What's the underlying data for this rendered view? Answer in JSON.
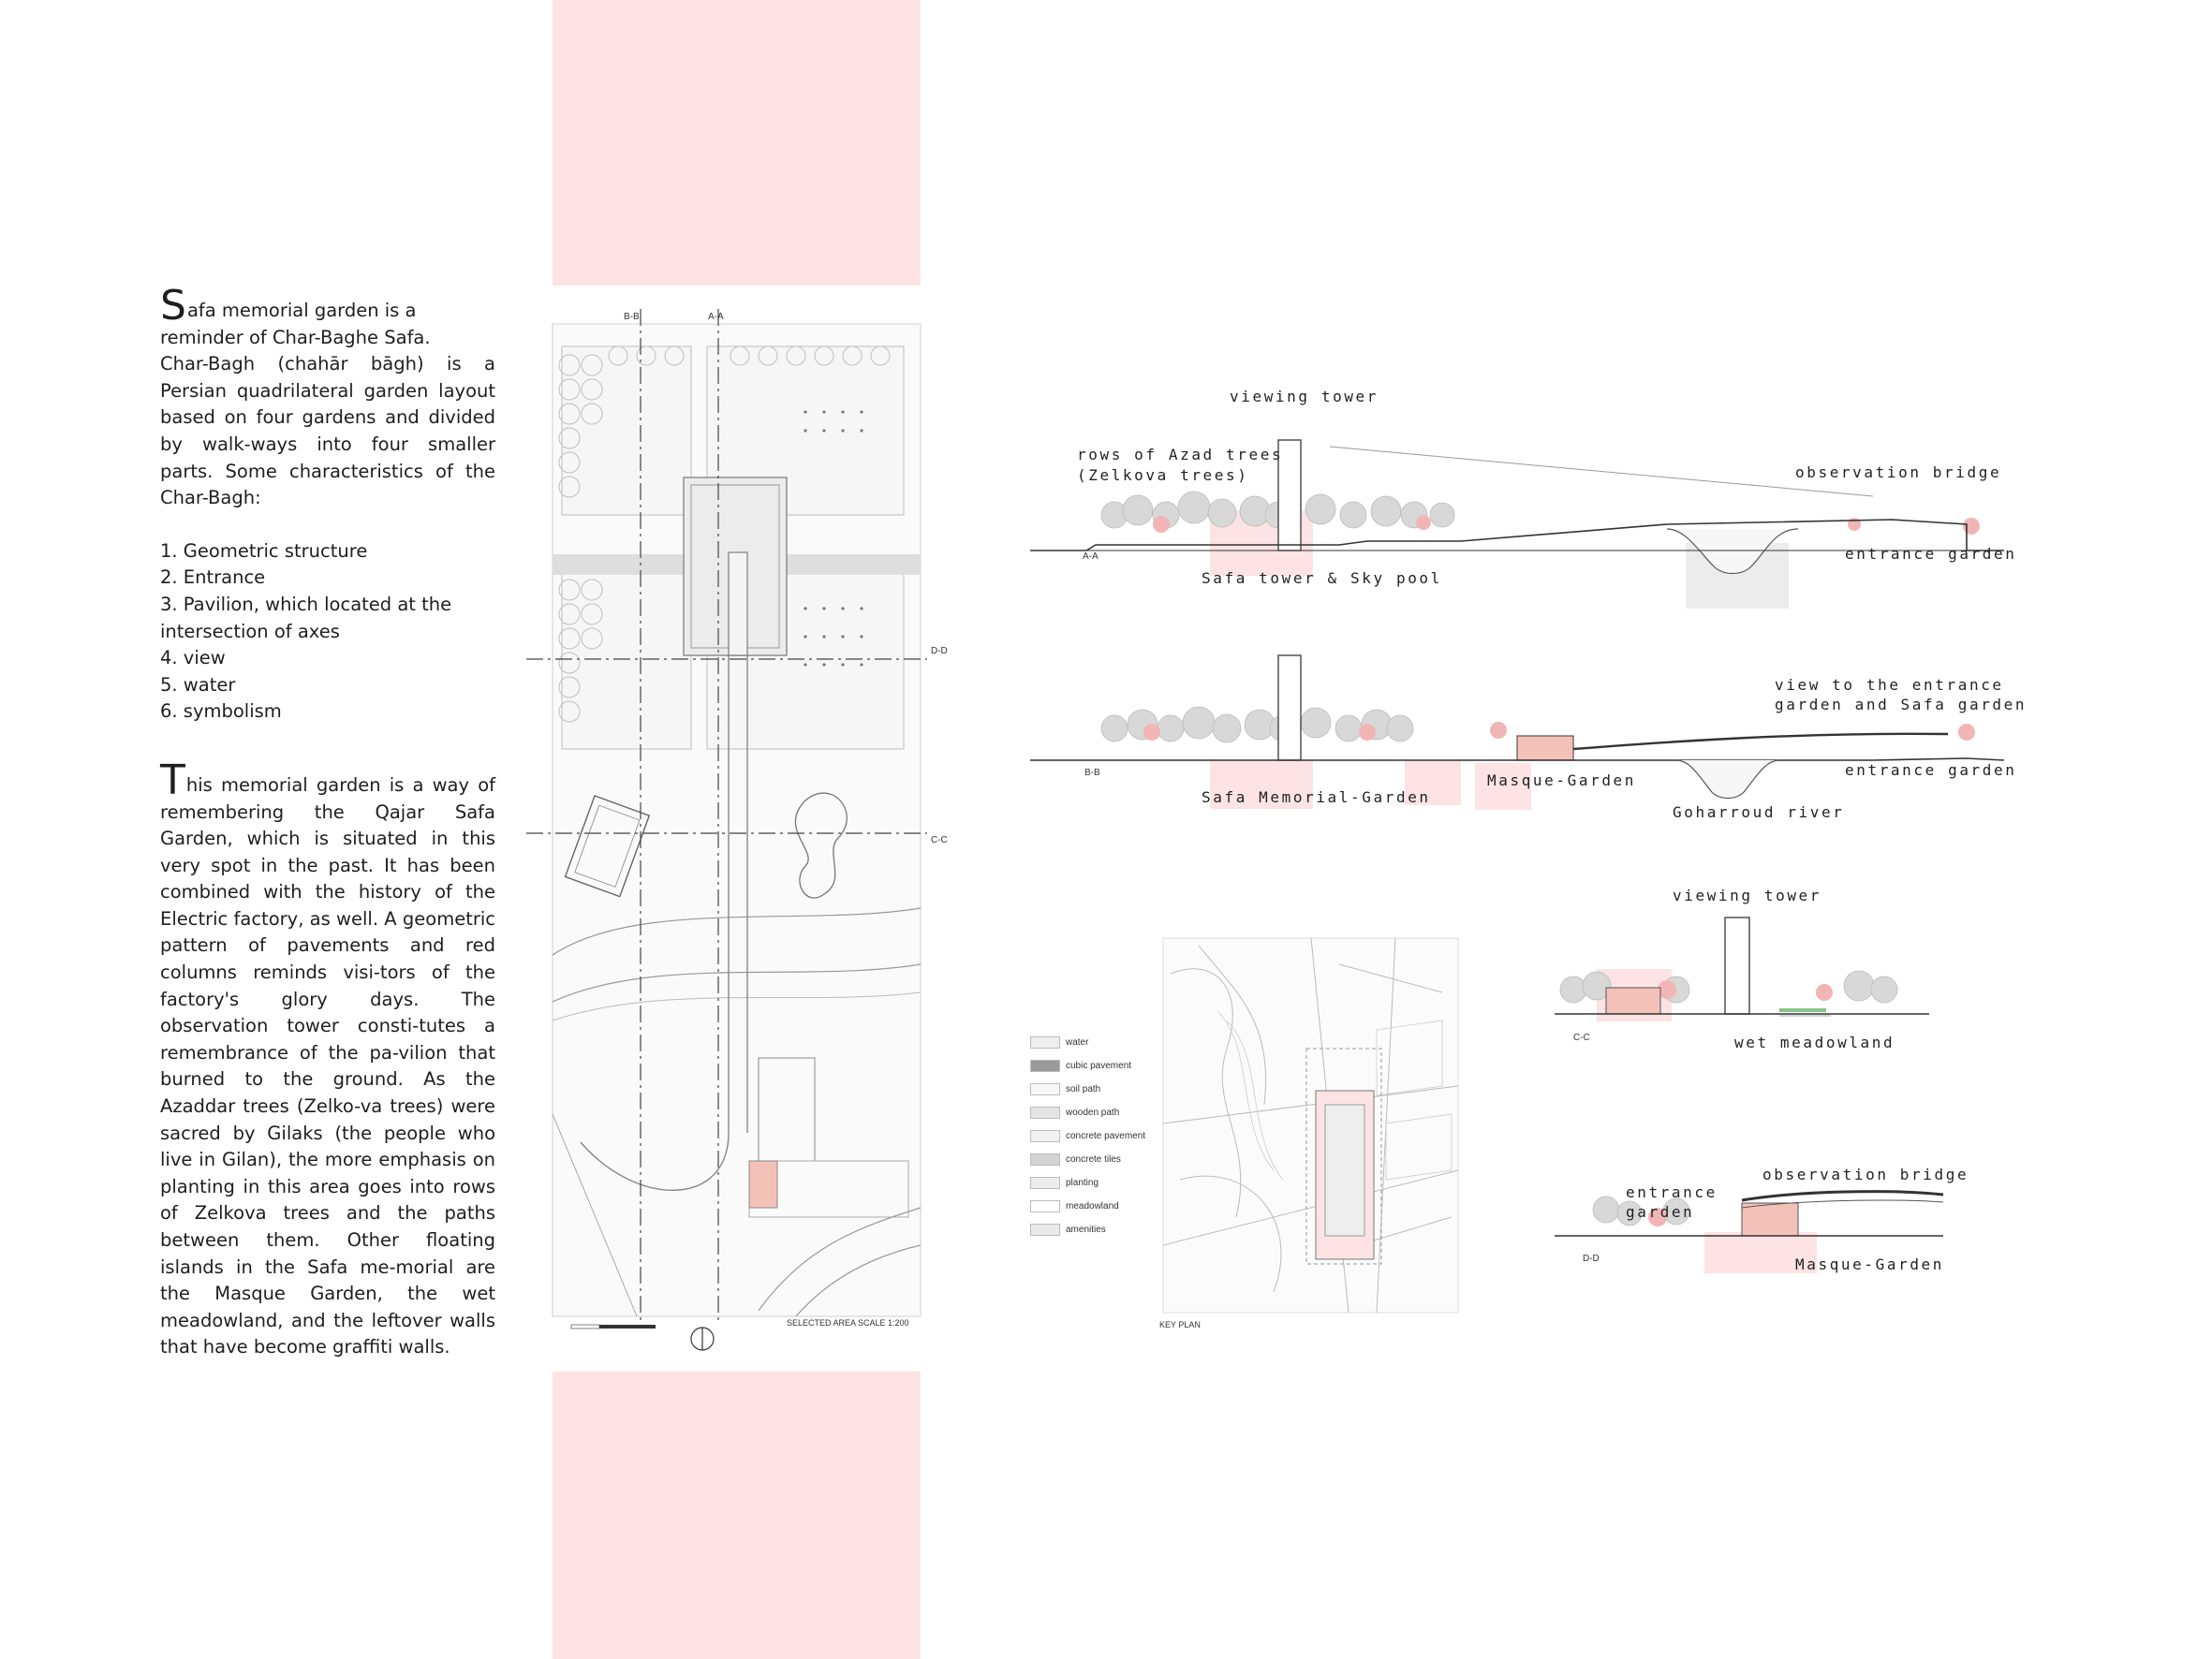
{
  "text_block": {
    "intro_dropcap": "S",
    "intro_rest": "afa memorial garden is a reminder of Char-Baghe Safa.",
    "definition": "Char-Bagh (chahār bāgh) is a Persian quadrilateral garden layout based on four gardens and divided by walk-ways into four smaller parts. Some characteristics of the Char-Bagh:",
    "characteristics": [
      "1. Geometric structure",
      "2. Entrance",
      "3. Pavilion, which located at the intersection of axes",
      "4. view",
      "5. water",
      "6. symbolism"
    ],
    "memorial_dropcap": "T",
    "memorial_rest": "his memorial garden is a way of remembering the Qajar Safa Garden, which is situated in this very spot in the past. It has been combined with the history of the Electric factory, as well. A geometric pattern of pavements and red columns reminds visi-tors of the factory's glory days. The observation tower consti-tutes a remembrance of the pa-vilion that burned to the ground. As the Azaddar trees (Zelko-va trees) were sacred by Gilaks (the people who live in Gilan), the more emphasis on planting in this area goes into rows of Zelkova trees and the paths between them. Other floating islands in the Safa me-morial are the Masque Garden, the wet meadowland, and the leftover walls that have become graffiti walls."
  },
  "plan": {
    "section_marks": {
      "bb": "B-B",
      "aa": "A-A",
      "dd": "D-D",
      "cc": "C-C"
    },
    "scale_caption": "SELECTED AREA SCALE 1:200"
  },
  "section_aa": {
    "viewing_tower": "viewing tower",
    "rows_of_trees_1": "rows of Azad trees",
    "rows_of_trees_2": "(Zelkova trees)",
    "observation_bridge": "observation bridge",
    "entrance_garden": "entrance garden",
    "safa_tower": "Safa tower & Sky pool",
    "mark": "A-A"
  },
  "section_bb": {
    "view_line1": "view to the entrance",
    "view_line2": "garden and Safa garden",
    "entrance_garden": "entrance garden",
    "masque_garden": "Masque-Garden",
    "safa_memorial": "Safa Memorial-Garden",
    "goharroud": "Goharroud river",
    "mark": "B-B"
  },
  "section_cc": {
    "viewing_tower": "viewing tower",
    "wet_meadowland": "wet meadowland",
    "mark": "C-C"
  },
  "section_dd": {
    "observation_bridge": "observation bridge",
    "entrance_garden_1": "entrance",
    "entrance_garden_2": "garden",
    "masque_garden": "Masque-Garden",
    "mark": "D-D"
  },
  "legend": [
    {
      "label": "water",
      "swatch": "#eeeeee"
    },
    {
      "label": "cubic pavement",
      "swatch": "#9a9a9a"
    },
    {
      "label": "soil path",
      "swatch": "#f7f7f7"
    },
    {
      "label": "wooden path",
      "swatch": "#e4e4e4"
    },
    {
      "label": "concrete pavement",
      "swatch": "#f2f2f2"
    },
    {
      "label": "concrete tiles",
      "swatch": "#d4d4d4"
    },
    {
      "label": "planting",
      "swatch": "#ececec"
    },
    {
      "label": "meadowland",
      "swatch": "#ffffff"
    },
    {
      "label": "amenities",
      "swatch": "#eaeaea"
    }
  ],
  "key_plan_caption": "KEY PLAN",
  "colors": {
    "accent_pink": "#fde3e4",
    "highlight_red": "#f2b5b5",
    "line": "#555555"
  }
}
